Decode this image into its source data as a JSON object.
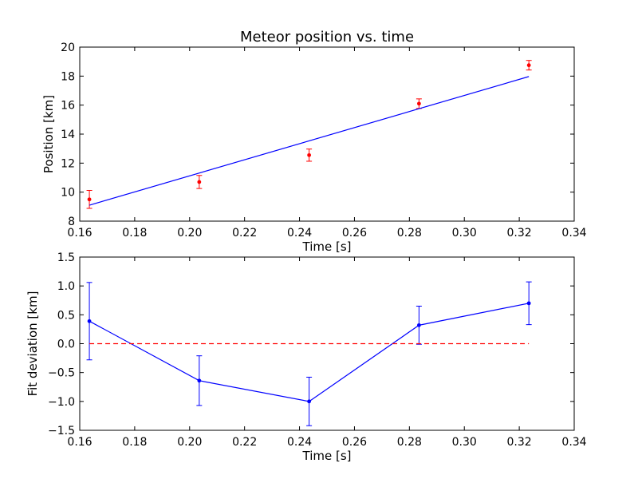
{
  "chart_data": [
    {
      "type": "scatter",
      "title": "Meteor position vs. time",
      "xlabel": "Time [s]",
      "ylabel": "Position [km]",
      "xlim": [
        0.16,
        0.34
      ],
      "ylim": [
        8,
        20
      ],
      "xticks": [
        "0.16",
        "0.18",
        "0.20",
        "0.22",
        "0.24",
        "0.26",
        "0.28",
        "0.30",
        "0.32",
        "0.34"
      ],
      "yticks": [
        "8",
        "10",
        "12",
        "14",
        "16",
        "18",
        "20"
      ],
      "grid": false,
      "series": [
        {
          "kind": "errorbar-points",
          "color": "#ff0000",
          "x": [
            0.1635,
            0.2035,
            0.2435,
            0.2835,
            0.3235
          ],
          "y": [
            9.5,
            10.7,
            12.55,
            16.1,
            18.75
          ],
          "yerr": [
            0.62,
            0.45,
            0.42,
            0.33,
            0.33
          ]
        },
        {
          "kind": "line",
          "color": "#0000ff",
          "x": [
            0.1635,
            0.3235
          ],
          "y": [
            9.1,
            17.97
          ]
        }
      ]
    },
    {
      "type": "line",
      "title": "",
      "xlabel": "Time [s]",
      "ylabel": "Fit deviation [km]",
      "xlim": [
        0.16,
        0.34
      ],
      "ylim": [
        -1.5,
        1.5
      ],
      "xticks": [
        "0.16",
        "0.18",
        "0.20",
        "0.22",
        "0.24",
        "0.26",
        "0.28",
        "0.30",
        "0.32",
        "0.34"
      ],
      "yticks": [
        "−1.5",
        "−1.0",
        "−0.5",
        "0.0",
        "0.5",
        "1.0",
        "1.5"
      ],
      "grid": false,
      "series": [
        {
          "kind": "errorbar-line",
          "color": "#0000ff",
          "x": [
            0.1635,
            0.2035,
            0.2435,
            0.2835,
            0.3235
          ],
          "y": [
            0.39,
            -0.64,
            -1.0,
            0.32,
            0.7
          ],
          "yerr": [
            0.67,
            0.43,
            0.42,
            0.33,
            0.37
          ]
        },
        {
          "kind": "dashed-zero-line",
          "color": "#ff0000",
          "x": [
            0.1635,
            0.3235
          ],
          "y": [
            0.0,
            0.0
          ]
        }
      ]
    }
  ]
}
